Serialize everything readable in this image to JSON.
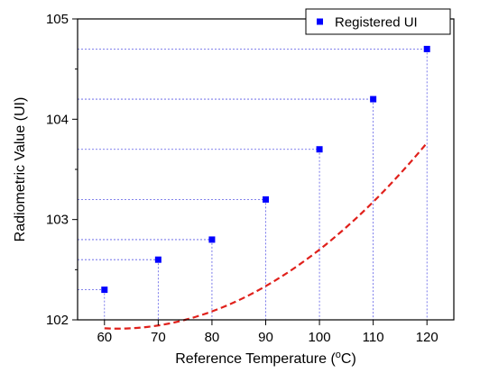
{
  "chart_data": {
    "type": "scatter",
    "title": "",
    "xlabel": "Reference Temperature (",
    "xlabel_unit_sup": "o",
    "xlabel_unit_tail": "C)",
    "ylabel": "Radiometric Value (UI)",
    "xlim": [
      55,
      125
    ],
    "ylim": [
      102,
      105
    ],
    "x_ticks": [
      60,
      70,
      80,
      90,
      100,
      110,
      120
    ],
    "y_ticks": [
      102,
      103,
      104,
      105
    ],
    "grid": false,
    "legend_position": "top-right",
    "series": [
      {
        "name": "Registered UI",
        "marker": "square",
        "color": "#0000ff",
        "x": [
          60,
          70,
          80,
          90,
          100,
          110,
          120
        ],
        "y": [
          102.3,
          102.6,
          102.8,
          103.2,
          103.7,
          104.2,
          104.7
        ]
      }
    ],
    "fit_curve": {
      "style": "dashed",
      "color": "#e0201b",
      "x": [
        60,
        120
      ],
      "coefficients": [
        104.1,
        -0.07,
        0.00056
      ]
    },
    "guide_lines": {
      "style": "dotted",
      "color": "#5a5ae6"
    }
  }
}
